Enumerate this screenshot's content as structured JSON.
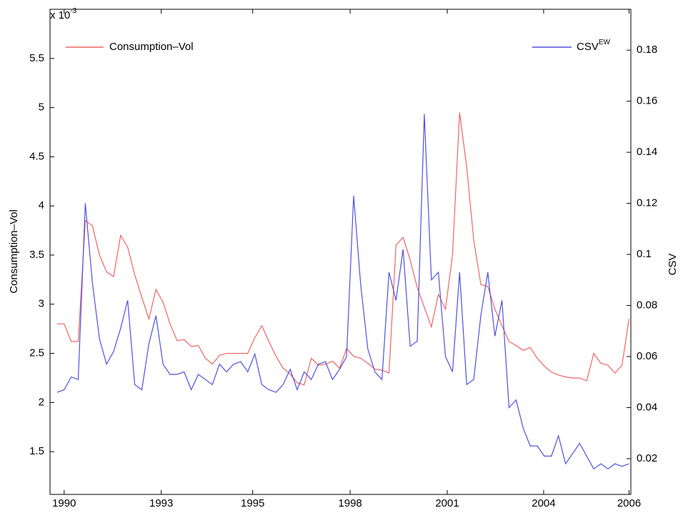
{
  "chart_data": {
    "type": "line",
    "y_multiplier": {
      "base": "x 10",
      "exponent": "-3"
    },
    "y_label": "Consumption–Vol",
    "y2_label": "CSV",
    "x": [
      1989.8,
      1990.0,
      1990.2,
      1990.4,
      1990.6,
      1990.8,
      1991.0,
      1991.2,
      1991.4,
      1991.6,
      1991.8,
      1992.0,
      1992.2,
      1992.4,
      1992.6,
      1992.8,
      1993.0,
      1993.2,
      1993.4,
      1993.6,
      1993.8,
      1994.0,
      1994.2,
      1994.4,
      1994.6,
      1994.8,
      1995.0,
      1995.2,
      1995.4,
      1995.6,
      1995.8,
      1996.0,
      1996.2,
      1996.4,
      1996.6,
      1996.8,
      1997.0,
      1997.2,
      1997.4,
      1997.6,
      1997.8,
      1998.0,
      1998.2,
      1998.4,
      1998.6,
      1998.8,
      1999.0,
      1999.2,
      1999.4,
      1999.6,
      1999.8,
      2000.0,
      2000.2,
      2000.4,
      2000.6,
      2000.8,
      2001.0,
      2001.2,
      2001.4,
      2001.6,
      2001.8,
      2002.0,
      2002.2,
      2002.4,
      2002.6,
      2002.8,
      2003.0,
      2003.2,
      2003.4,
      2003.6,
      2003.8,
      2004.0,
      2004.2,
      2004.4,
      2004.6,
      2004.8,
      2005.0,
      2005.2,
      2005.4,
      2005.6,
      2005.8,
      2006.0
    ],
    "series": [
      {
        "name": "Consumption–Vol",
        "color": "#f06464",
        "legend": "upper left",
        "values": [
          2.8,
          2.8,
          2.62,
          2.62,
          3.85,
          3.8,
          3.5,
          3.33,
          3.28,
          3.7,
          3.58,
          3.3,
          3.07,
          2.85,
          3.15,
          3.02,
          2.8,
          2.63,
          2.64,
          2.57,
          2.58,
          2.45,
          2.39,
          2.48,
          2.5,
          2.5,
          2.5,
          2.5,
          2.66,
          2.78,
          2.62,
          2.47,
          2.35,
          2.29,
          2.2,
          2.18,
          2.45,
          2.38,
          2.39,
          2.42,
          2.35,
          2.55,
          2.47,
          2.45,
          2.4,
          2.34,
          2.33,
          2.3,
          3.6,
          3.68,
          3.45,
          3.17,
          2.97,
          2.77,
          3.1,
          2.95,
          3.5,
          4.95,
          4.4,
          3.65,
          3.2,
          3.18,
          2.95,
          2.78,
          2.62,
          2.58,
          2.53,
          2.56,
          2.45,
          2.37,
          2.31,
          2.28,
          2.26,
          2.25,
          2.25,
          2.22,
          2.5,
          2.4,
          2.38,
          2.3,
          2.38,
          2.85
        ]
      },
      {
        "name": "CSV",
        "name_superscript": "EW",
        "color": "#5050e0",
        "axis": "y2",
        "legend": "upper right",
        "values": [
          0.046,
          0.047,
          0.052,
          0.051,
          0.12,
          0.089,
          0.067,
          0.057,
          0.062,
          0.071,
          0.082,
          0.049,
          0.047,
          0.065,
          0.076,
          0.057,
          0.053,
          0.053,
          0.054,
          0.047,
          0.053,
          0.051,
          0.049,
          0.057,
          0.054,
          0.057,
          0.058,
          0.054,
          0.061,
          0.049,
          0.047,
          0.046,
          0.049,
          0.055,
          0.047,
          0.054,
          0.051,
          0.057,
          0.058,
          0.051,
          0.055,
          0.06,
          0.123,
          0.088,
          0.063,
          0.054,
          0.051,
          0.093,
          0.082,
          0.102,
          0.064,
          0.066,
          0.155,
          0.09,
          0.093,
          0.06,
          0.054,
          0.093,
          0.049,
          0.051,
          0.076,
          0.093,
          0.068,
          0.082,
          0.04,
          0.043,
          0.032,
          0.025,
          0.025,
          0.021,
          0.021,
          0.029,
          0.018,
          0.022,
          0.026,
          0.021,
          0.016,
          0.018,
          0.016,
          0.018,
          0.017,
          0.018
        ]
      }
    ],
    "xlim": [
      1989.6,
      2006.05
    ],
    "xticks": [
      {
        "value": 1990,
        "label": "1990"
      },
      {
        "value": 1992.75,
        "label": "1993"
      },
      {
        "value": 1995.34,
        "label": "1995"
      },
      {
        "value": 1998.1,
        "label": "1998"
      },
      {
        "value": 2000.85,
        "label": "2001"
      },
      {
        "value": 2003.58,
        "label": "2004"
      },
      {
        "value": 2006,
        "label": "2006"
      }
    ],
    "ylim": [
      1.065,
      6.0
    ],
    "yticks": [
      1.5,
      2,
      2.5,
      3,
      3.5,
      4,
      4.5,
      5,
      5.5
    ],
    "y2lim": [
      0.006,
      0.196
    ],
    "y2ticks": [
      0.02,
      0.04,
      0.06,
      0.08,
      0.1,
      0.12,
      0.14,
      0.16,
      0.18
    ]
  }
}
